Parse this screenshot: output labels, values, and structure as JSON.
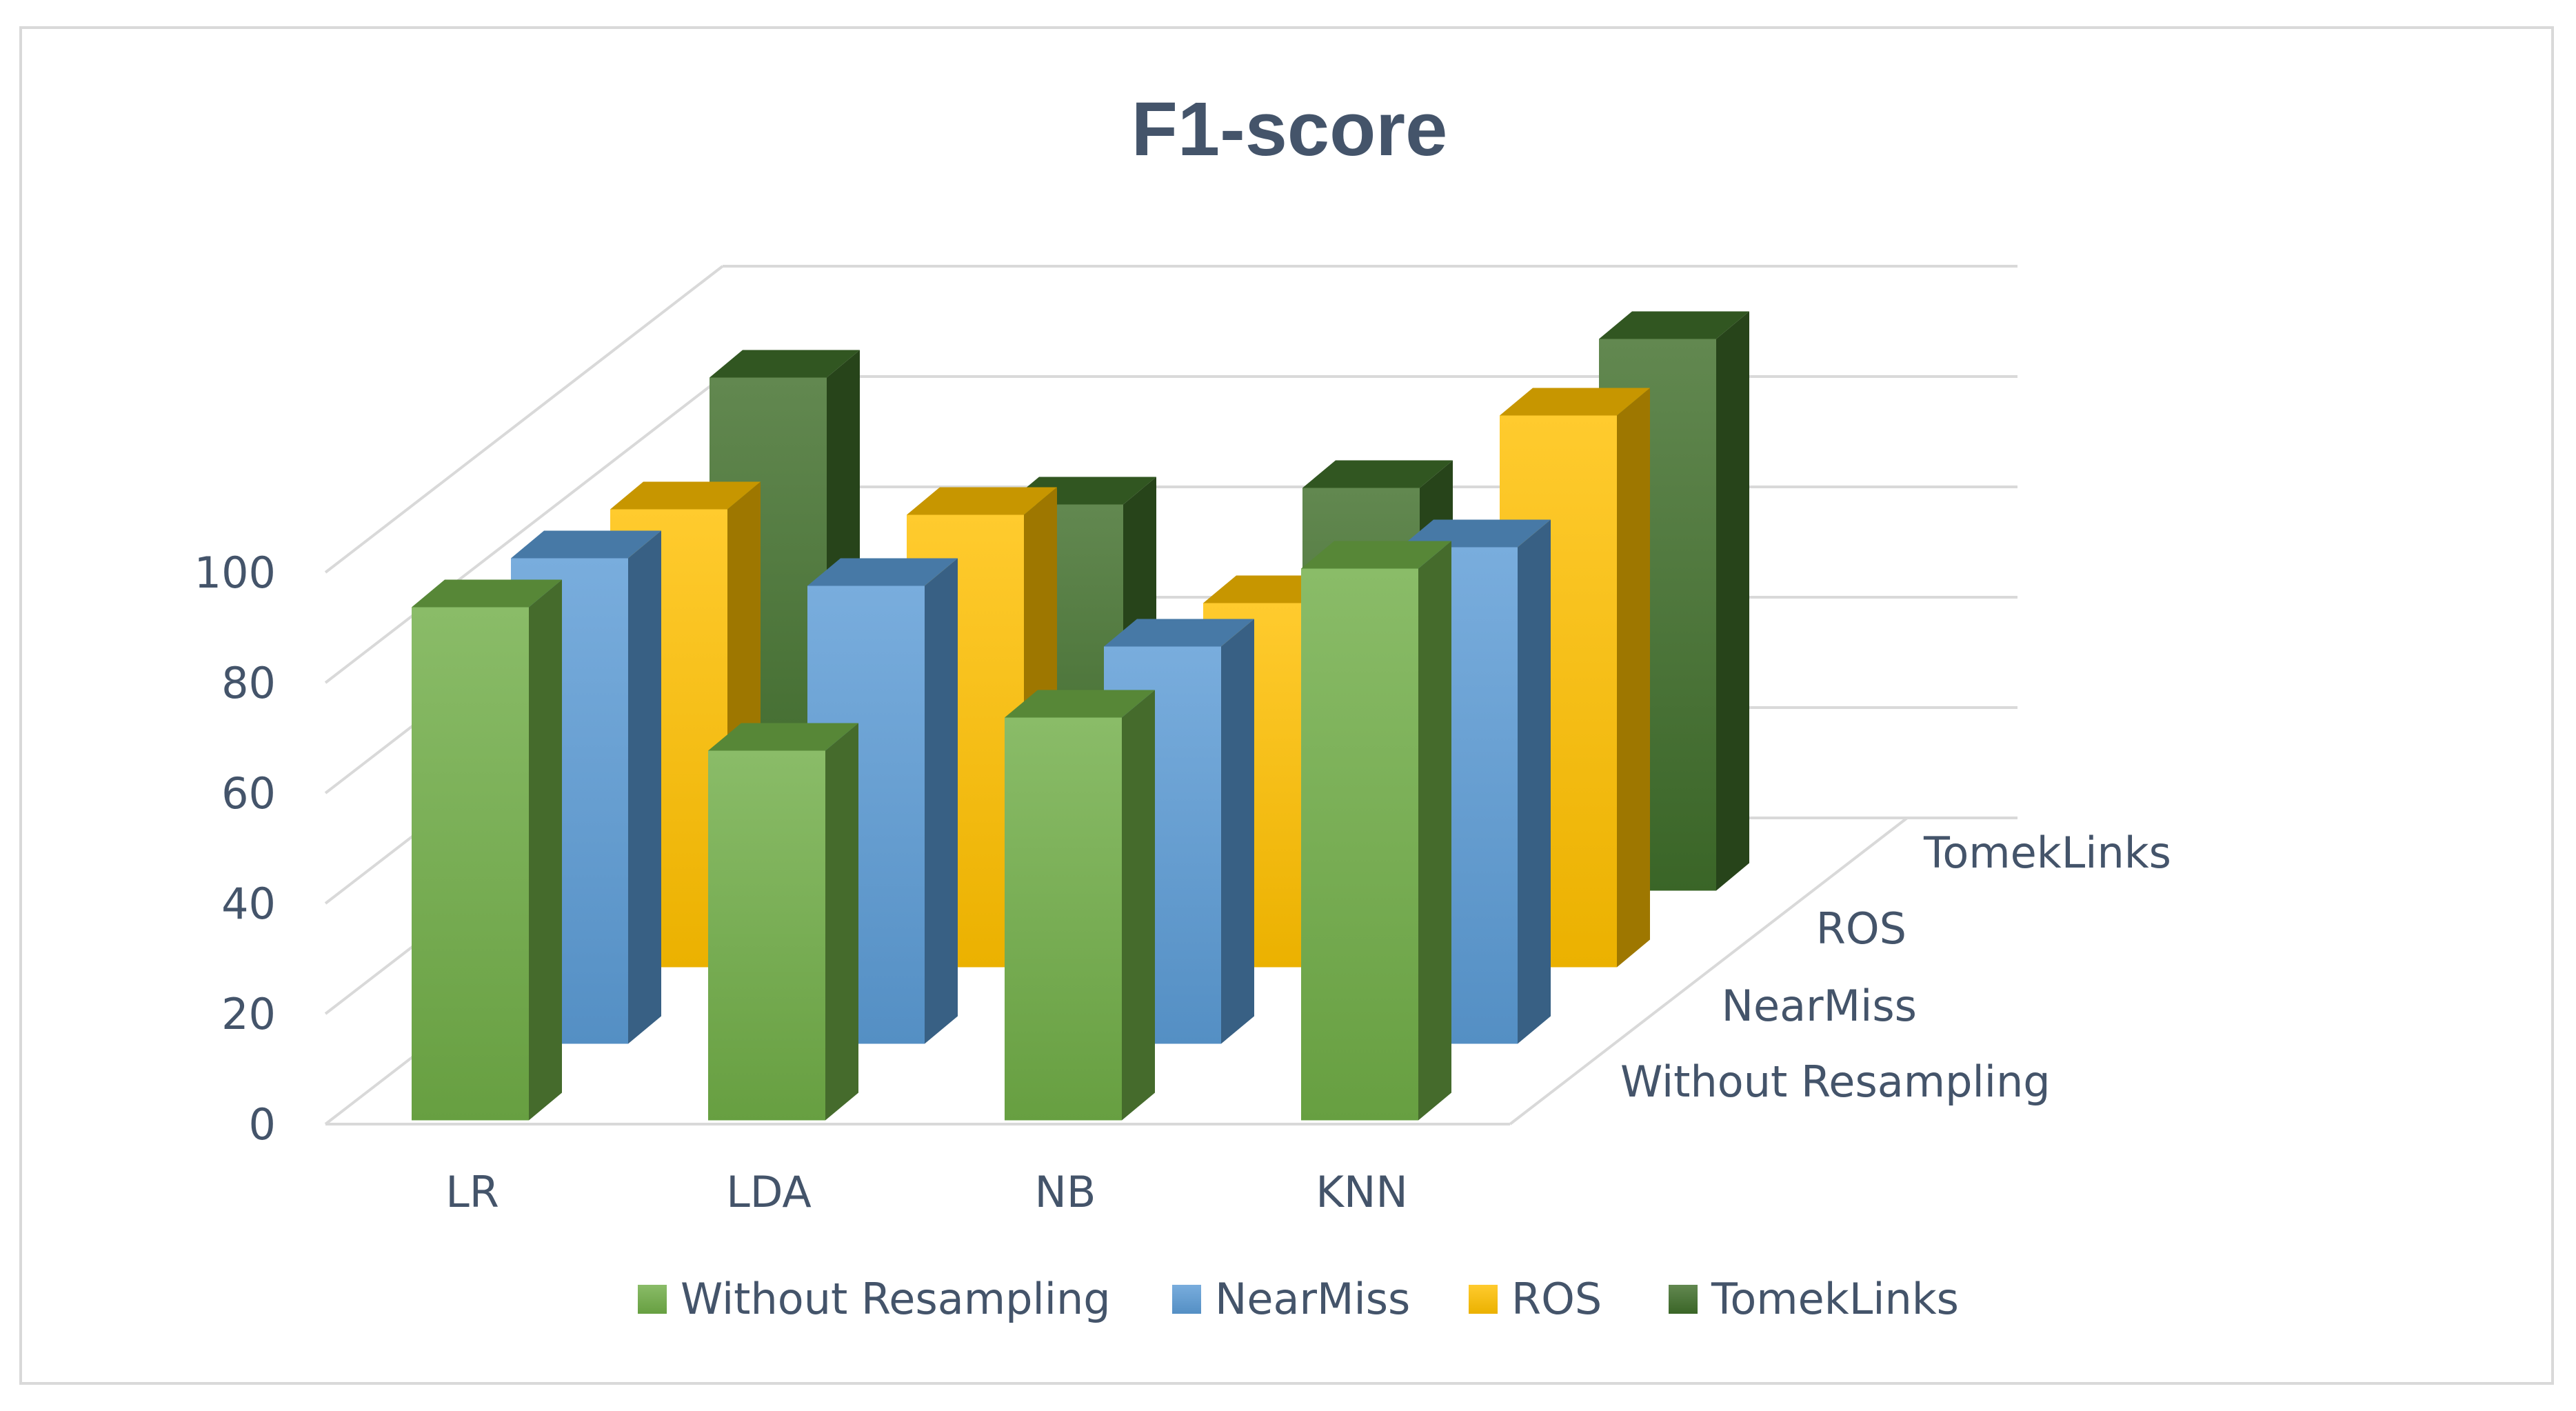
{
  "chart_data": {
    "type": "bar",
    "variant": "3d-column",
    "title": "F1-score",
    "categories": [
      "LR",
      "LDA",
      "NB",
      "KNN"
    ],
    "series": [
      {
        "name": "Without Resampling",
        "values": [
          93,
          67,
          73,
          100
        ],
        "color": "#70ad47"
      },
      {
        "name": "NearMiss",
        "values": [
          88,
          83,
          72,
          90
        ],
        "color": "#5b9bd5"
      },
      {
        "name": "ROS",
        "values": [
          83,
          82,
          66,
          100
        ],
        "color": "#ffc000"
      },
      {
        "name": "TomekLinks",
        "values": [
          93,
          70,
          73,
          100
        ],
        "color": "#3f6e2a"
      }
    ],
    "yticks": [
      "0",
      "20",
      "40",
      "60",
      "80",
      "100"
    ],
    "ylim": [
      0,
      100
    ],
    "depth_labels": [
      "Without Resampling",
      "NearMiss",
      "ROS",
      "TomekLinks"
    ],
    "grid": true,
    "legend_position": "bottom"
  }
}
